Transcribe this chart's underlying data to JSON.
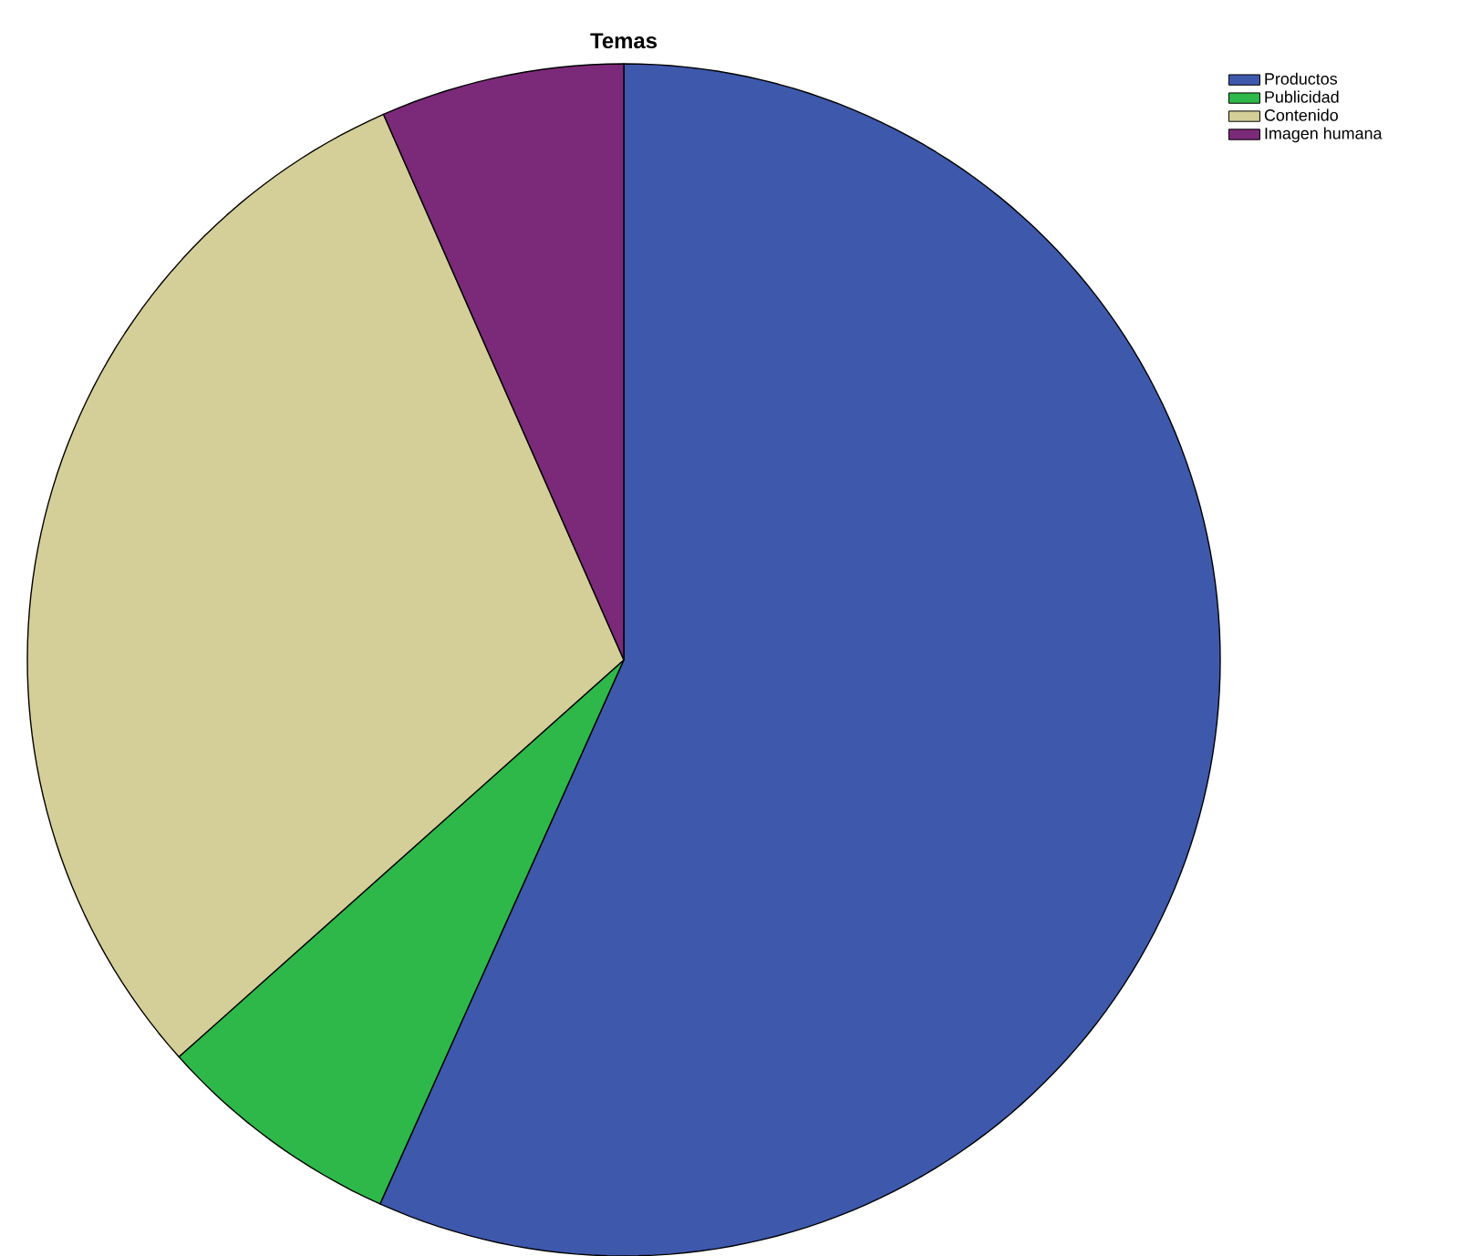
{
  "chart_data": {
    "type": "pie",
    "title": "Temas",
    "categories": [
      "Productos",
      "Publicidad",
      "Contenido",
      "Imagen humana"
    ],
    "values": [
      56.7,
      6.7,
      30.0,
      6.6
    ],
    "colors": [
      "#3e58ac",
      "#2eb84a",
      "#d4cf99",
      "#7b2a7a"
    ],
    "legend": "top right"
  }
}
